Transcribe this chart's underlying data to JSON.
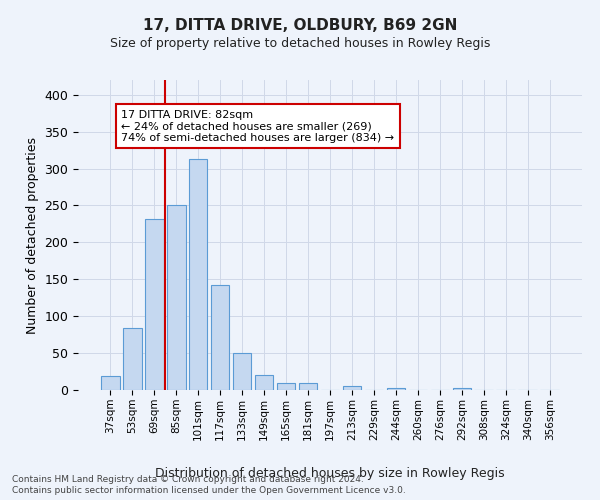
{
  "title": "17, DITTA DRIVE, OLDBURY, B69 2GN",
  "subtitle": "Size of property relative to detached houses in Rowley Regis",
  "xlabel": "Distribution of detached houses by size in Rowley Regis",
  "ylabel": "Number of detached properties",
  "footnote1": "Contains HM Land Registry data © Crown copyright and database right 2024.",
  "footnote2": "Contains public sector information licensed under the Open Government Licence v3.0.",
  "bar_labels": [
    "37sqm",
    "53sqm",
    "69sqm",
    "85sqm",
    "101sqm",
    "117sqm",
    "133sqm",
    "149sqm",
    "165sqm",
    "181sqm",
    "197sqm",
    "213sqm",
    "229sqm",
    "244sqm",
    "260sqm",
    "276sqm",
    "292sqm",
    "308sqm",
    "324sqm",
    "340sqm",
    "356sqm"
  ],
  "bar_values": [
    19,
    84,
    232,
    251,
    313,
    142,
    50,
    21,
    9,
    10,
    0,
    5,
    0,
    3,
    0,
    0,
    3,
    0,
    0,
    0,
    0
  ],
  "bar_color": "#c5d8f0",
  "bar_edge_color": "#5b9bd5",
  "grid_color": "#d0d8e8",
  "bg_color": "#eef3fb",
  "vline_color": "#cc0000",
  "annotation_text": "17 DITTA DRIVE: 82sqm\n← 24% of detached houses are smaller (269)\n74% of semi-detached houses are larger (834) →",
  "annotation_box_color": "#ffffff",
  "annotation_box_edge": "#cc0000",
  "ylim": [
    0,
    420
  ],
  "yticks": [
    0,
    50,
    100,
    150,
    200,
    250,
    300,
    350,
    400
  ]
}
